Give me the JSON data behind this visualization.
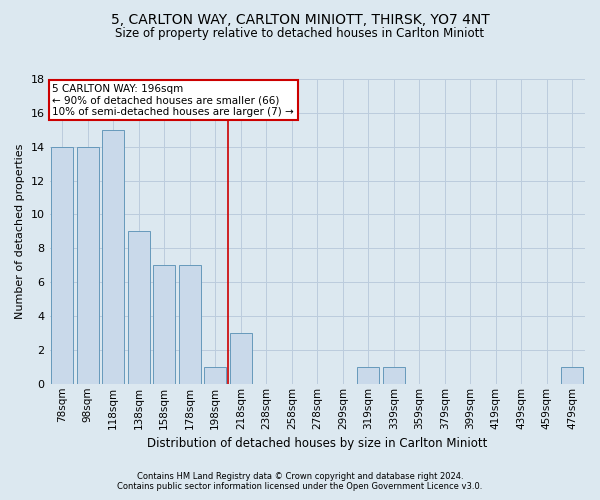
{
  "title": "5, CARLTON WAY, CARLTON MINIOTT, THIRSK, YO7 4NT",
  "subtitle": "Size of property relative to detached houses in Carlton Miniott",
  "xlabel": "Distribution of detached houses by size in Carlton Miniott",
  "ylabel": "Number of detached properties",
  "footnote1": "Contains HM Land Registry data © Crown copyright and database right 2024.",
  "footnote2": "Contains public sector information licensed under the Open Government Licence v3.0.",
  "categories": [
    "78sqm",
    "98sqm",
    "118sqm",
    "138sqm",
    "158sqm",
    "178sqm",
    "198sqm",
    "218sqm",
    "238sqm",
    "258sqm",
    "278sqm",
    "299sqm",
    "319sqm",
    "339sqm",
    "359sqm",
    "379sqm",
    "399sqm",
    "419sqm",
    "439sqm",
    "459sqm",
    "479sqm"
  ],
  "values": [
    14,
    14,
    15,
    9,
    7,
    7,
    1,
    3,
    0,
    0,
    0,
    0,
    1,
    1,
    0,
    0,
    0,
    0,
    0,
    0,
    1
  ],
  "bar_color": "#c9d9ea",
  "bar_edge_color": "#6699bb",
  "grid_color": "#bbccdd",
  "background_color": "#dce8f0",
  "vline_x_index": 6,
  "vline_color": "#cc0000",
  "annotation_text": "5 CARLTON WAY: 196sqm\n← 90% of detached houses are smaller (66)\n10% of semi-detached houses are larger (7) →",
  "annotation_box_facecolor": "#ffffff",
  "annotation_box_edgecolor": "#cc0000",
  "ylim": [
    0,
    18
  ],
  "yticks": [
    0,
    2,
    4,
    6,
    8,
    10,
    12,
    14,
    16,
    18
  ],
  "title_fontsize": 10,
  "subtitle_fontsize": 8.5,
  "ylabel_fontsize": 8,
  "xlabel_fontsize": 8.5,
  "tick_fontsize": 7.5,
  "ytick_fontsize": 8,
  "footnote_fontsize": 6,
  "annotation_fontsize": 7.5
}
